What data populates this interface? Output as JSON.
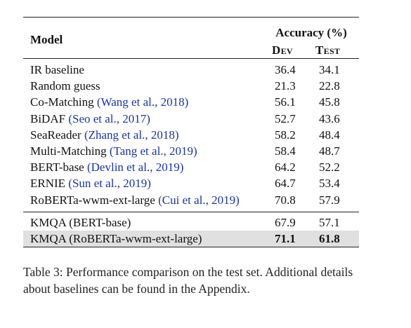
{
  "table": {
    "header": {
      "model": "Model",
      "accuracy": "Accuracy (%)",
      "dev": "Dev",
      "test": "Test"
    },
    "baselines": [
      {
        "name": "IR baseline",
        "cite": "",
        "dev": "36.4",
        "test": "34.1"
      },
      {
        "name": "Random guess",
        "cite": "",
        "dev": "21.3",
        "test": "22.8"
      },
      {
        "name": "Co-Matching",
        "cite": "(Wang et al., 2018)",
        "dev": "56.1",
        "test": "45.8"
      },
      {
        "name": "BiDAF",
        "cite": "(Seo et al., 2017)",
        "dev": "52.7",
        "test": "43.6"
      },
      {
        "name": "SeaReader",
        "cite": "(Zhang et al., 2018)",
        "dev": "58.2",
        "test": "48.4"
      },
      {
        "name": "Multi-Matching",
        "cite": "(Tang et al., 2019)",
        "dev": "58.4",
        "test": "48.7"
      },
      {
        "name": "BERT-base",
        "cite": "(Devlin et al., 2019)",
        "dev": "64.2",
        "test": "52.2"
      },
      {
        "name": "ERNIE",
        "cite": "(Sun et al., 2019)",
        "dev": "64.7",
        "test": "53.4"
      },
      {
        "name": "RoBERTa-wwm-ext-large",
        "cite": "(Cui et al., 2019)",
        "dev": "70.8",
        "test": "57.9"
      }
    ],
    "ours": [
      {
        "name": "KMQA (BERT-base)",
        "cite": "",
        "dev": "67.9",
        "test": "57.1",
        "highlight": false
      },
      {
        "name": "KMQA (RoBERTa-wwm-ext-large)",
        "cite": "",
        "dev": "71.1",
        "test": "61.8",
        "highlight": true
      }
    ]
  },
  "caption": "Table 3: Performance comparison on the test set. Additional details about baselines can be found in the Appendix.",
  "colors": {
    "citation": "#1a35a0",
    "highlight_row": "#e0e0e0"
  }
}
